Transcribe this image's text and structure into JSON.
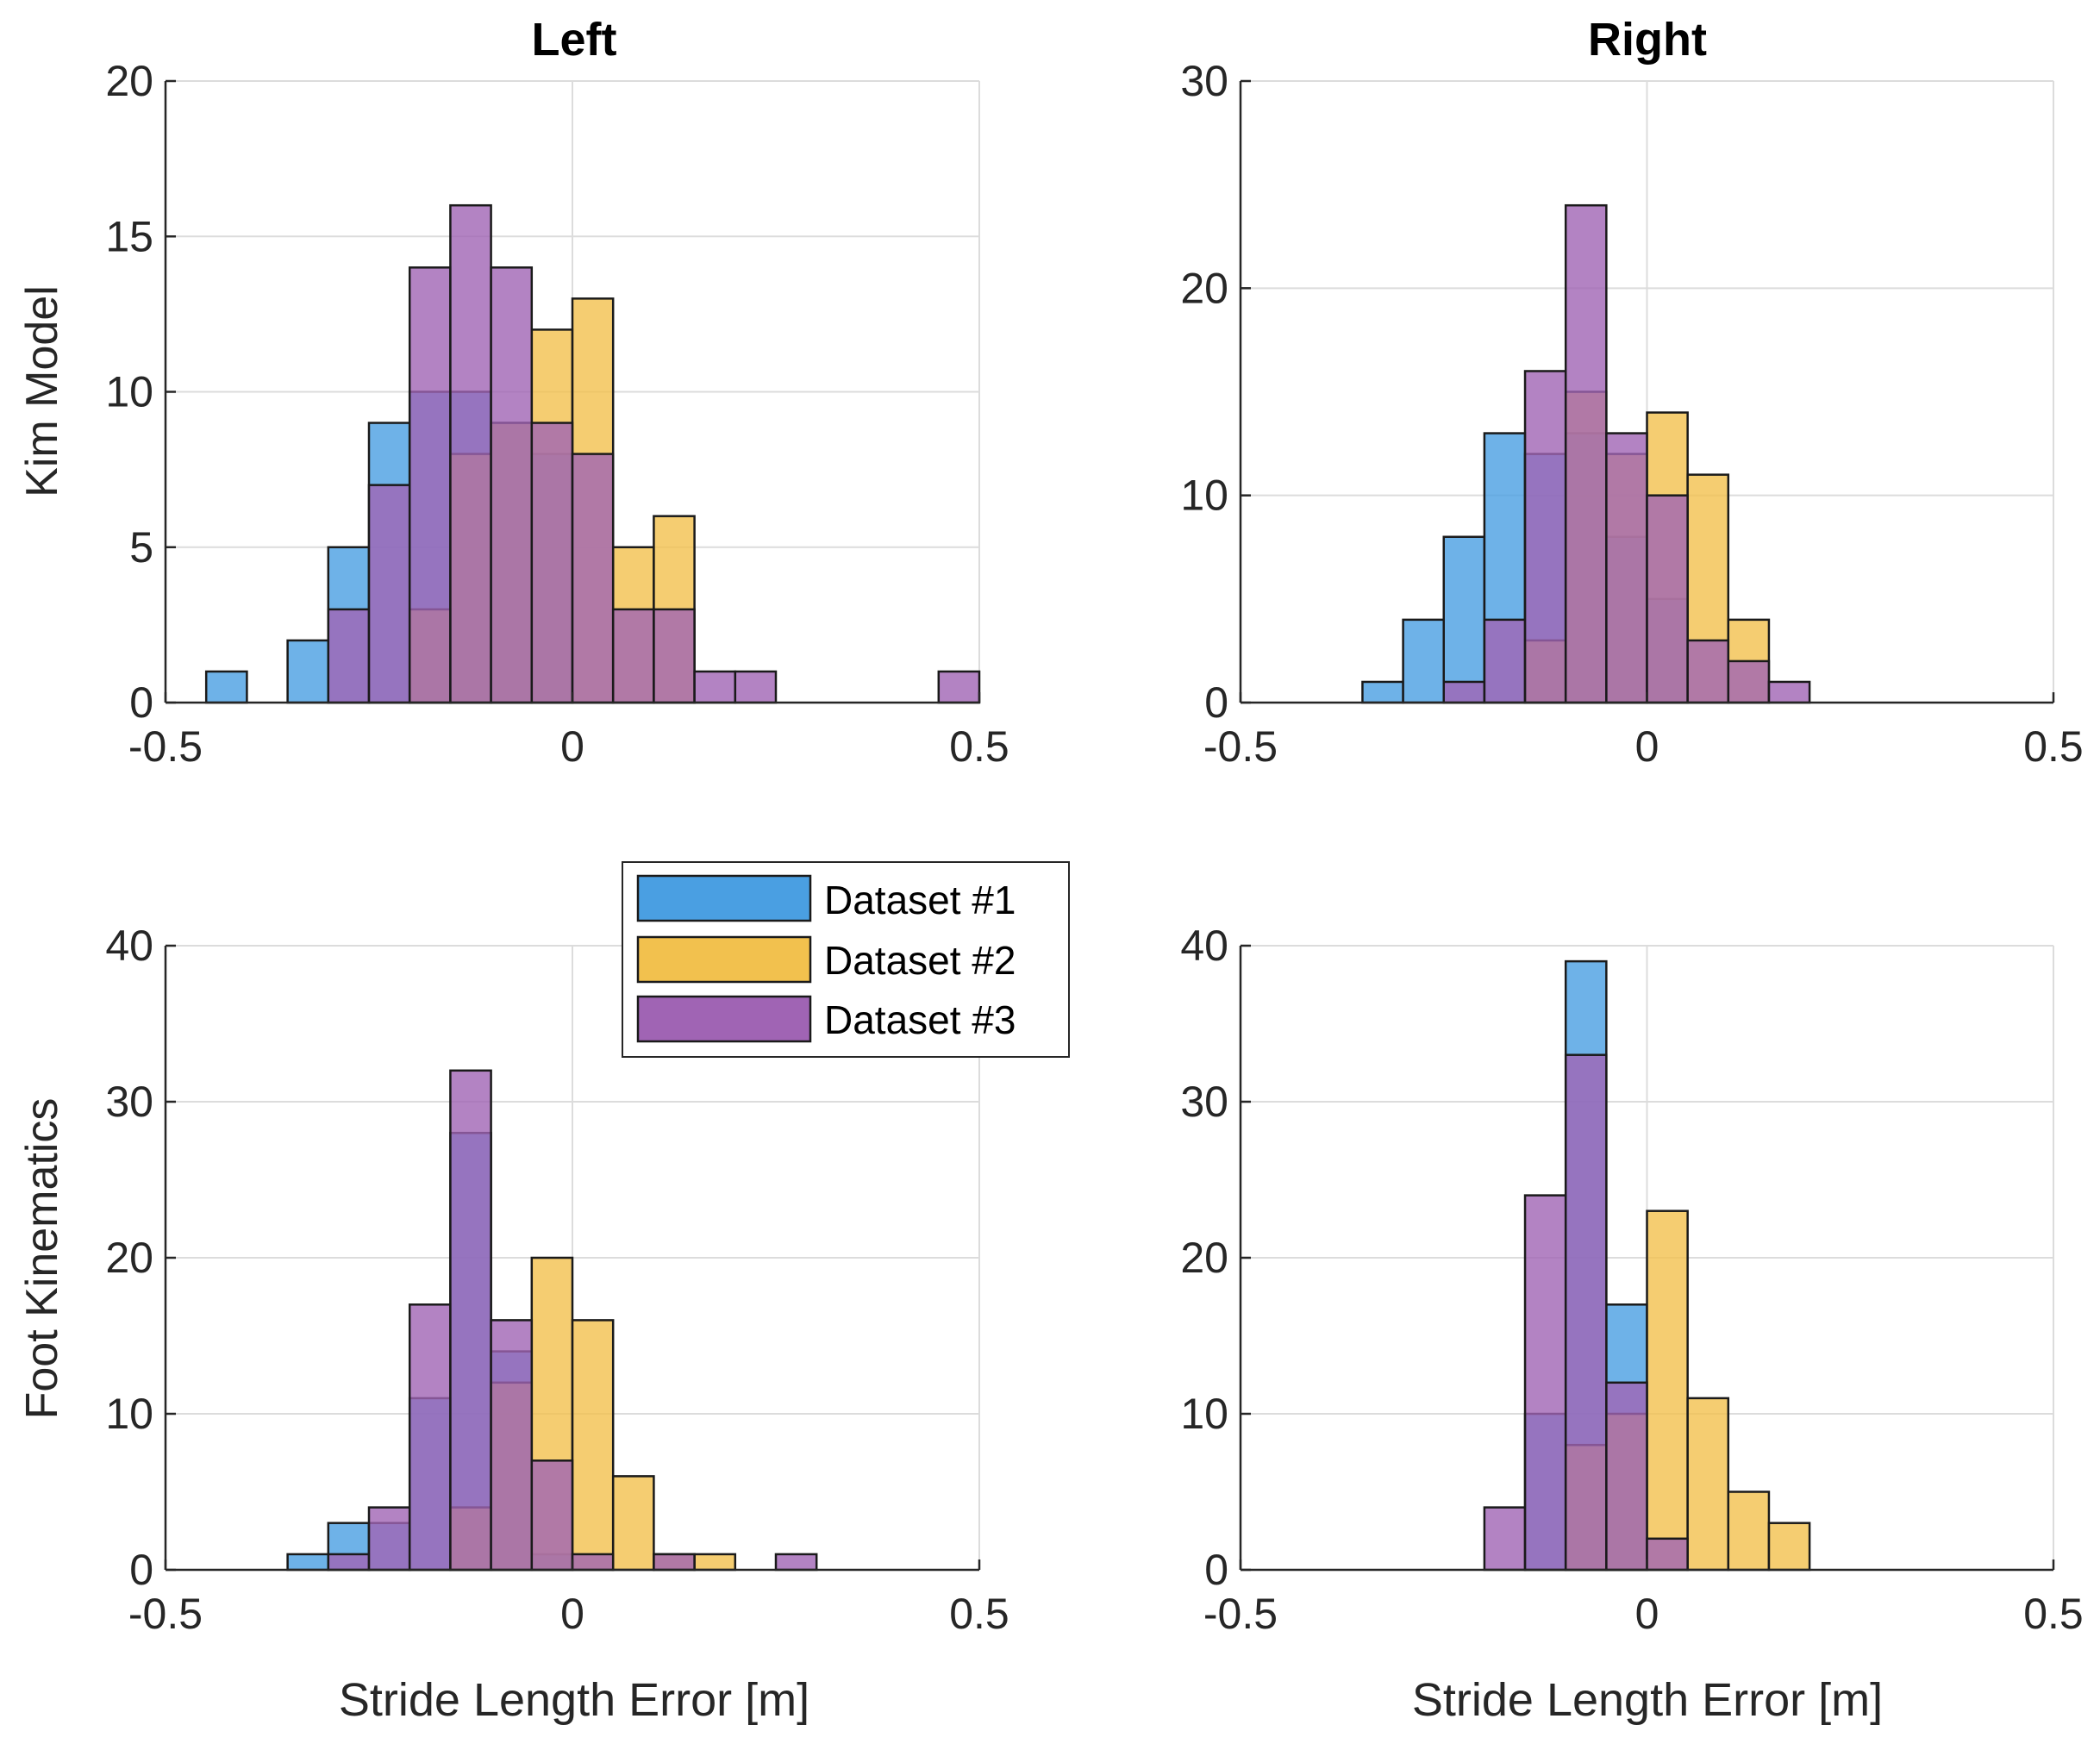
{
  "chart_data": {
    "type": "histogram-grid",
    "column_titles": [
      "Left",
      "Right"
    ],
    "row_labels": [
      "Kim Model",
      "Foot Kinematics"
    ],
    "xlabel": "Stride Length Error [m]",
    "xlim": [
      -0.5,
      0.5
    ],
    "xticks": [
      -0.5,
      0,
      0.5
    ],
    "xtick_labels": [
      "-0.5",
      "0",
      "0.5"
    ],
    "bin_width": 0.05,
    "grid": true,
    "legend": {
      "placement": "between-rows-left-column",
      "entries": [
        "Dataset #1",
        "Dataset #2",
        "Dataset #3"
      ]
    },
    "series_colors": [
      "#4A9FE2",
      "#F2C14E",
      "#A064B4"
    ],
    "panels": [
      {
        "name": "kim-left",
        "ylim": [
          0,
          20
        ],
        "yticks": [
          0,
          5,
          10,
          15,
          20
        ],
        "series": [
          {
            "name": "Dataset #1",
            "bins": [
              [
                -0.45,
                1
              ],
              [
                -0.35,
                2
              ],
              [
                -0.3,
                5
              ],
              [
                -0.25,
                9
              ],
              [
                -0.2,
                10
              ],
              [
                -0.15,
                10
              ],
              [
                -0.1,
                9
              ],
              [
                -0.05,
                8
              ]
            ]
          },
          {
            "name": "Dataset #2",
            "bins": [
              [
                -0.2,
                3
              ],
              [
                -0.15,
                8
              ],
              [
                -0.1,
                9
              ],
              [
                -0.05,
                12
              ],
              [
                0.0,
                13
              ],
              [
                0.05,
                5
              ],
              [
                0.1,
                6
              ]
            ]
          },
          {
            "name": "Dataset #3",
            "bins": [
              [
                -0.3,
                3
              ],
              [
                -0.25,
                7
              ],
              [
                -0.2,
                14
              ],
              [
                -0.15,
                16
              ],
              [
                -0.1,
                14
              ],
              [
                -0.05,
                9
              ],
              [
                0.0,
                8
              ],
              [
                0.05,
                3
              ],
              [
                0.1,
                3
              ],
              [
                0.15,
                1
              ],
              [
                0.2,
                1
              ],
              [
                0.45,
                1
              ]
            ]
          }
        ]
      },
      {
        "name": "kim-right",
        "ylim": [
          0,
          30
        ],
        "yticks": [
          0,
          10,
          20,
          30
        ],
        "series": [
          {
            "name": "Dataset #1",
            "bins": [
              [
                -0.35,
                1
              ],
              [
                -0.3,
                4
              ],
              [
                -0.25,
                8
              ],
              [
                -0.2,
                13
              ],
              [
                -0.15,
                12
              ],
              [
                -0.1,
                13
              ],
              [
                -0.05,
                8
              ],
              [
                0.0,
                5
              ]
            ]
          },
          {
            "name": "Dataset #2",
            "bins": [
              [
                -0.15,
                3
              ],
              [
                -0.1,
                15
              ],
              [
                -0.05,
                12
              ],
              [
                0.0,
                14
              ],
              [
                0.05,
                11
              ],
              [
                0.1,
                4
              ]
            ]
          },
          {
            "name": "Dataset #3",
            "bins": [
              [
                -0.25,
                1
              ],
              [
                -0.2,
                4
              ],
              [
                -0.15,
                16
              ],
              [
                -0.1,
                24
              ],
              [
                -0.05,
                13
              ],
              [
                0.0,
                10
              ],
              [
                0.05,
                3
              ],
              [
                0.1,
                2
              ],
              [
                0.15,
                1
              ]
            ]
          }
        ]
      },
      {
        "name": "foot-left",
        "ylim": [
          0,
          40
        ],
        "yticks": [
          0,
          10,
          20,
          30,
          40
        ],
        "series": [
          {
            "name": "Dataset #1",
            "bins": [
              [
                -0.35,
                1
              ],
              [
                -0.3,
                3
              ],
              [
                -0.25,
                3
              ],
              [
                -0.2,
                11
              ],
              [
                -0.15,
                28
              ],
              [
                -0.1,
                14
              ],
              [
                -0.05,
                1
              ]
            ]
          },
          {
            "name": "Dataset #2",
            "bins": [
              [
                -0.15,
                4
              ],
              [
                -0.1,
                12
              ],
              [
                -0.05,
                20
              ],
              [
                0.0,
                16
              ],
              [
                0.05,
                6
              ],
              [
                0.1,
                1
              ],
              [
                0.15,
                1
              ]
            ]
          },
          {
            "name": "Dataset #3",
            "bins": [
              [
                -0.3,
                1
              ],
              [
                -0.25,
                4
              ],
              [
                -0.2,
                17
              ],
              [
                -0.15,
                32
              ],
              [
                -0.1,
                16
              ],
              [
                -0.05,
                7
              ],
              [
                0.0,
                1
              ],
              [
                0.1,
                1
              ],
              [
                0.25,
                1
              ]
            ]
          }
        ]
      },
      {
        "name": "foot-right",
        "ylim": [
          0,
          40
        ],
        "yticks": [
          0,
          10,
          20,
          30,
          40
        ],
        "series": [
          {
            "name": "Dataset #1",
            "bins": [
              [
                -0.15,
                10
              ],
              [
                -0.1,
                39
              ],
              [
                -0.05,
                17
              ]
            ]
          },
          {
            "name": "Dataset #2",
            "bins": [
              [
                -0.1,
                8
              ],
              [
                -0.05,
                10
              ],
              [
                0.0,
                23
              ],
              [
                0.05,
                11
              ],
              [
                0.1,
                5
              ],
              [
                0.15,
                3
              ]
            ]
          },
          {
            "name": "Dataset #3",
            "bins": [
              [
                -0.2,
                4
              ],
              [
                -0.15,
                24
              ],
              [
                -0.1,
                33
              ],
              [
                -0.05,
                12
              ],
              [
                0.0,
                2
              ]
            ]
          }
        ]
      }
    ]
  }
}
